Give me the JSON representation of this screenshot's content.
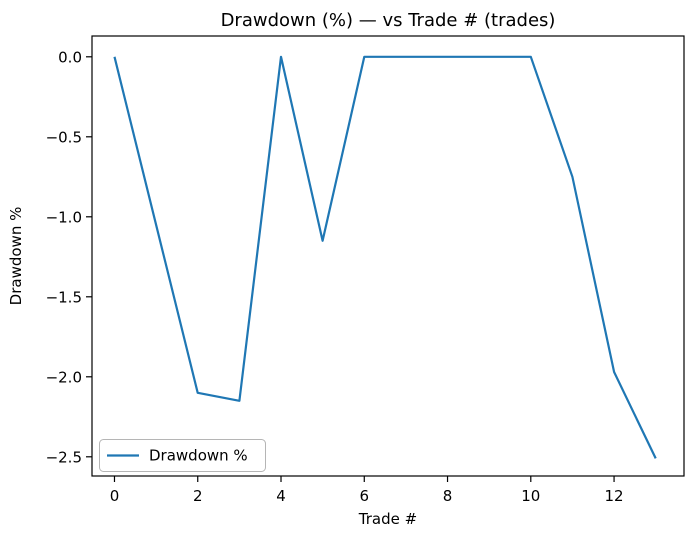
{
  "chart_data": {
    "type": "line",
    "title": "Drawdown (%) — vs Trade # (trades)",
    "xlabel": "Trade #",
    "ylabel": "Drawdown %",
    "x": [
      0,
      1,
      2,
      3,
      4,
      5,
      6,
      7,
      8,
      9,
      10,
      11,
      12,
      13
    ],
    "series": [
      {
        "name": "Drawdown %",
        "values": [
          0.0,
          -1.05,
          -2.1,
          -2.15,
          0.0,
          -1.15,
          0.0,
          0.0,
          0.0,
          0.0,
          0.0,
          -0.75,
          -1.97,
          -2.51
        ],
        "color": "#1f77b4"
      }
    ],
    "xticks": [
      0,
      2,
      4,
      6,
      8,
      10,
      12
    ],
    "xtick_labels": [
      "0",
      "2",
      "4",
      "6",
      "8",
      "10",
      "12"
    ],
    "yticks": [
      0.0,
      -0.5,
      -1.0,
      -1.5,
      -2.0,
      -2.5
    ],
    "ytick_labels": [
      "0.0",
      "−0.5",
      "−1.0",
      "−1.5",
      "−2.0",
      "−2.5"
    ],
    "xlim": [
      -0.54,
      13.68
    ],
    "ylim": [
      -2.62,
      0.13
    ],
    "grid": false,
    "legend": {
      "position": "lower left",
      "entries": [
        "Drawdown %"
      ]
    }
  },
  "figure": {
    "background": "#ffffff",
    "spine_color": "#000000",
    "line_color": "#1f77b4",
    "legend_border_color": "#b5b5b5"
  }
}
